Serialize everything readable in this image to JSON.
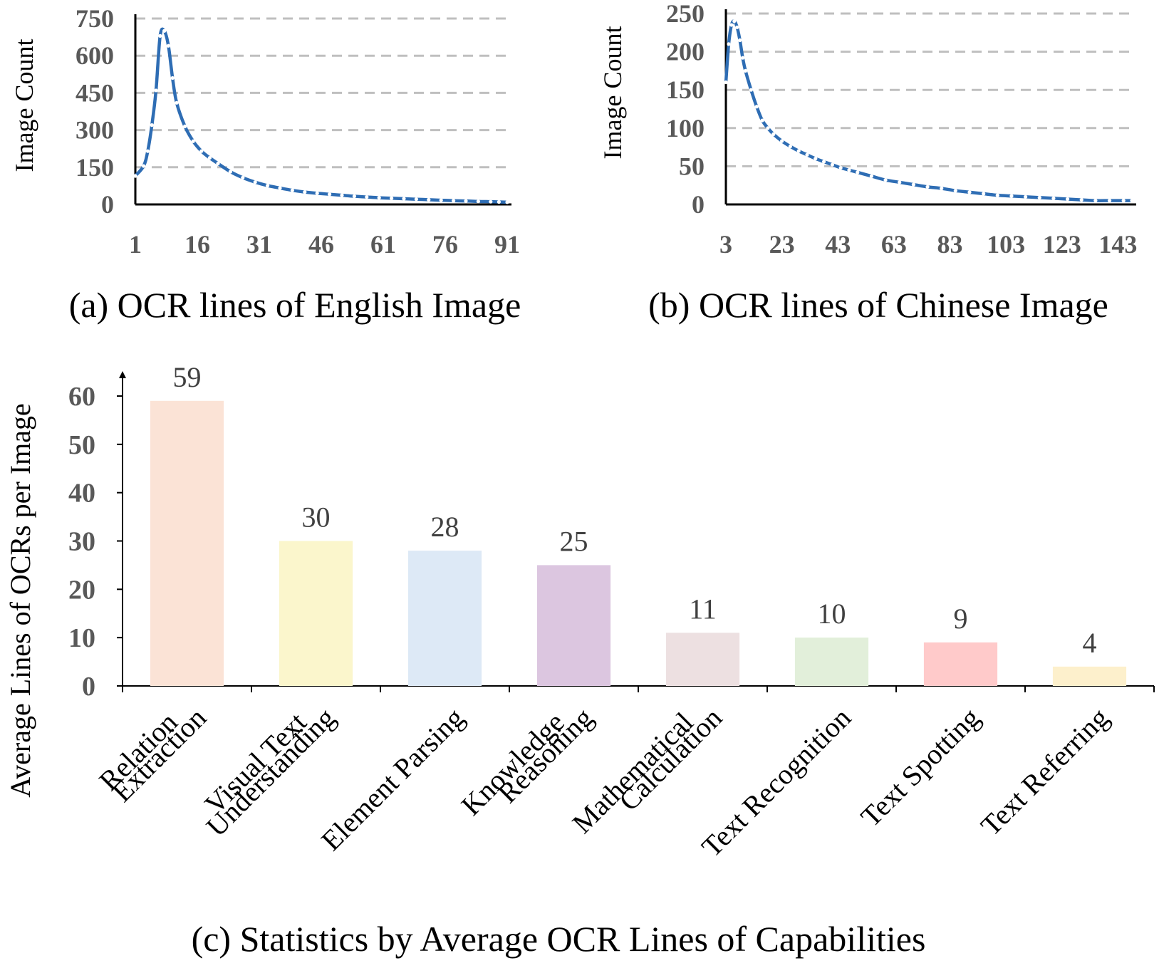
{
  "colors": {
    "line": "#2e6db4",
    "marker": "#ffffff",
    "grid": "#bfbfbf",
    "axis": "#000000",
    "tick_text": "#595959",
    "label_text": "#000000",
    "bar_label_text": "#404040",
    "bars": [
      "#fbe3d6",
      "#fbf6cc",
      "#dde9f6",
      "#dcc6e0",
      "#ede0e1",
      "#e2efda",
      "#ffcaca",
      "#fdf0cc"
    ]
  },
  "chart_data": [
    {
      "type": "line",
      "id": "a",
      "caption": "(a) OCR lines of English Image",
      "ylabel": "Image Count",
      "xlabel": "",
      "xlim": [
        1,
        91
      ],
      "ylim": [
        0,
        750
      ],
      "xticks": [
        1,
        16,
        31,
        46,
        61,
        76,
        91
      ],
      "xtick_labels": [
        "1",
        "16",
        "31",
        "46",
        "61",
        "76",
        "91"
      ],
      "yticks": [
        0,
        150,
        300,
        450,
        600,
        750
      ],
      "ytick_labels": [
        "0",
        "150",
        "300",
        "450",
        "600",
        "750"
      ],
      "grid": true,
      "x": [
        1,
        3,
        4,
        5,
        6,
        7,
        8,
        9,
        10,
        11,
        13,
        15,
        17,
        19,
        21,
        24,
        27,
        30,
        33,
        36,
        39,
        42,
        45,
        48,
        51,
        54,
        57,
        60,
        63,
        66,
        69,
        72,
        75,
        78,
        81,
        84,
        87,
        89,
        91
      ],
      "y": [
        115,
        155,
        215,
        320,
        460,
        680,
        700,
        640,
        510,
        410,
        315,
        255,
        215,
        188,
        165,
        132,
        108,
        90,
        76,
        66,
        57,
        50,
        45,
        41,
        37,
        33,
        30,
        27,
        25,
        23,
        21,
        19,
        17,
        15,
        14,
        12,
        11,
        10,
        9
      ]
    },
    {
      "type": "line",
      "id": "b",
      "caption": "(b) OCR lines of Chinese Image",
      "ylabel": "Image Count",
      "xlabel": "",
      "xlim": [
        3,
        148
      ],
      "ylim": [
        0,
        250
      ],
      "xticks": [
        3,
        23,
        43,
        63,
        83,
        103,
        123,
        143
      ],
      "xtick_labels": [
        "3",
        "23",
        "43",
        "63",
        "83",
        "103",
        "123",
        "143"
      ],
      "yticks": [
        0,
        50,
        100,
        150,
        200,
        250
      ],
      "ytick_labels": [
        "0",
        "50",
        "100",
        "150",
        "200",
        "250"
      ],
      "grid": true,
      "x": [
        3,
        4,
        5,
        6,
        7,
        8,
        9,
        10,
        12,
        14,
        16,
        18,
        20,
        23,
        26,
        29,
        32,
        35,
        38,
        41,
        44,
        47,
        50,
        55,
        60,
        65,
        70,
        75,
        80,
        85,
        90,
        95,
        100,
        105,
        110,
        115,
        120,
        125,
        130,
        135,
        140,
        145,
        148
      ],
      "y": [
        160,
        210,
        235,
        240,
        232,
        215,
        192,
        175,
        150,
        128,
        110,
        100,
        92,
        83,
        76,
        70,
        65,
        60,
        56,
        52,
        48,
        45,
        42,
        37,
        32,
        29,
        26,
        23,
        21,
        18,
        16,
        14,
        12,
        11,
        10,
        9,
        8,
        7,
        6,
        5,
        5,
        5,
        5
      ]
    },
    {
      "type": "bar",
      "id": "c",
      "caption": "(c) Statistics by Average OCR Lines of Capabilities",
      "ylabel": "Average Lines of OCRs per Image",
      "xlabel": "",
      "ylim": [
        0,
        60
      ],
      "yticks": [
        0,
        10,
        20,
        30,
        40,
        50,
        60
      ],
      "ytick_labels": [
        "0",
        "10",
        "20",
        "30",
        "40",
        "50",
        "60"
      ],
      "grid": false,
      "categories": [
        [
          "Relation",
          "Extraction"
        ],
        [
          "Visual Text",
          "Understanding"
        ],
        [
          "Element Parsing"
        ],
        [
          "Knowledge",
          "Reasoning"
        ],
        [
          "Mathematical",
          "Calculation"
        ],
        [
          "Text Recognition"
        ],
        [
          "Text Spotting"
        ],
        [
          "Text Referring"
        ]
      ],
      "values": [
        59,
        30,
        28,
        25,
        11,
        10,
        9,
        4
      ],
      "value_labels": [
        "59",
        "30",
        "28",
        "25",
        "11",
        "10",
        "9",
        "4"
      ]
    }
  ]
}
